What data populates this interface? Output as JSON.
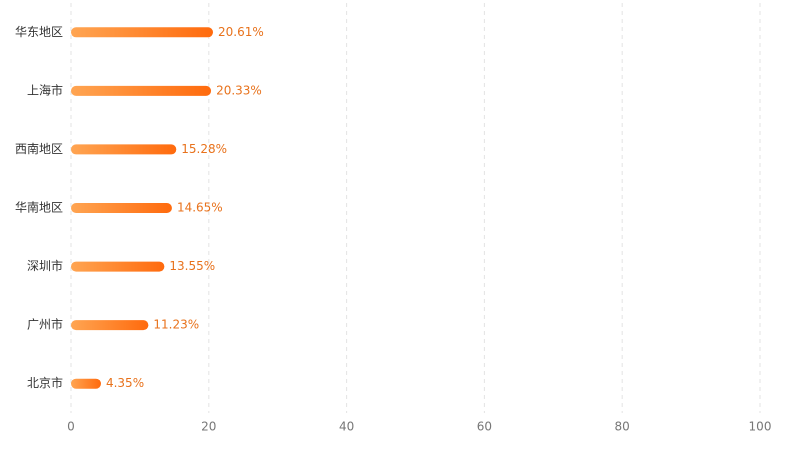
{
  "chart_data": {
    "type": "bar",
    "orientation": "horizontal",
    "categories": [
      "华东地区",
      "上海市",
      "西南地区",
      "华南地区",
      "深圳市",
      "广州市",
      "北京市"
    ],
    "values": [
      20.61,
      20.33,
      15.28,
      14.65,
      13.55,
      11.23,
      4.35
    ],
    "value_labels": [
      "20.61%",
      "20.33%",
      "15.28%",
      "14.65%",
      "13.55%",
      "11.23%",
      "4.35%"
    ],
    "gradient": [
      "#ffa552",
      "#ff6a0d"
    ],
    "label_color": "#e8721c",
    "xlim": [
      0,
      100
    ],
    "xticks": [
      0,
      20,
      40,
      60,
      80,
      100
    ],
    "grid": true
  }
}
